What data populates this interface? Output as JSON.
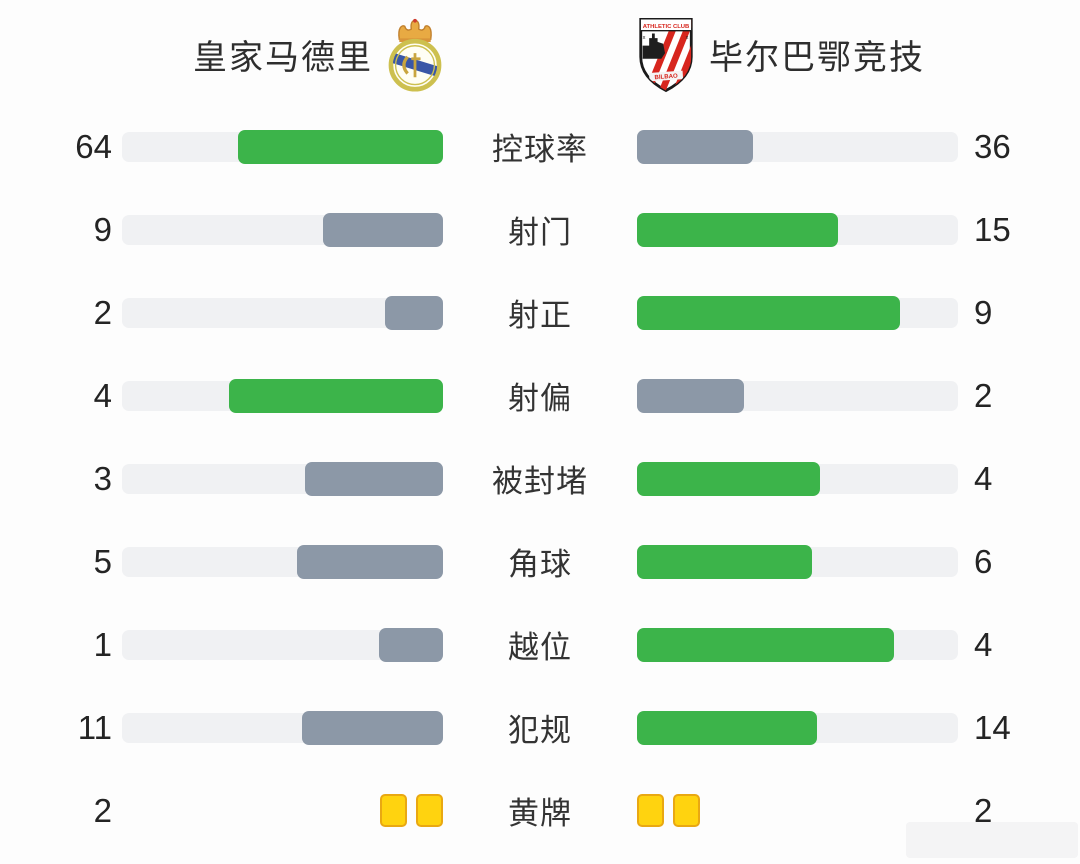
{
  "colors": {
    "win": "#3cb44a",
    "lose": "#8c98a7",
    "track": "#f0f1f3",
    "card": "#ffd30f",
    "cardborder": "#e9a812"
  },
  "header": {
    "home_team": "皇家马德里",
    "away_team": "毕尔巴鄂竞技",
    "home_crest": "real-madrid-crest",
    "away_crest": "athletic-club-crest",
    "away_crest_top_text": "ATHLETIC CLUB",
    "away_crest_bottom_text": "BILBAO"
  },
  "rows": [
    {
      "label": "控球率",
      "home": "64",
      "away": "36",
      "home_pct": 64,
      "away_pct": 36,
      "home_style": "win",
      "away_style": "lose"
    },
    {
      "label": "射门",
      "home": "9",
      "away": "15",
      "home_pct": 37.5,
      "away_pct": 62.5,
      "home_style": "lose",
      "away_style": "win"
    },
    {
      "label": "射正",
      "home": "2",
      "away": "9",
      "home_pct": 18.2,
      "away_pct": 81.8,
      "home_style": "lose",
      "away_style": "win"
    },
    {
      "label": "射偏",
      "home": "4",
      "away": "2",
      "home_pct": 66.7,
      "away_pct": 33.3,
      "home_style": "win",
      "away_style": "lose"
    },
    {
      "label": "被封堵",
      "home": "3",
      "away": "4",
      "home_pct": 42.9,
      "away_pct": 57.1,
      "home_style": "lose",
      "away_style": "win"
    },
    {
      "label": "角球",
      "home": "5",
      "away": "6",
      "home_pct": 45.5,
      "away_pct": 54.5,
      "home_style": "lose",
      "away_style": "win"
    },
    {
      "label": "越位",
      "home": "1",
      "away": "4",
      "home_pct": 20,
      "away_pct": 80,
      "home_style": "lose",
      "away_style": "win"
    },
    {
      "label": "犯规",
      "home": "11",
      "away": "14",
      "home_pct": 44,
      "away_pct": 56,
      "home_style": "lose",
      "away_style": "win"
    },
    {
      "label": "黄牌",
      "home": "2",
      "away": "2",
      "home_cards": 2,
      "away_cards": 2
    }
  ],
  "chart_data": {
    "type": "bar",
    "title": "皇家马德里 vs 毕尔巴鄂竞技 比赛技术统计",
    "categories": [
      "控球率",
      "射门",
      "射正",
      "射偏",
      "被封堵",
      "角球",
      "越位",
      "犯规",
      "黄牌"
    ],
    "series": [
      {
        "name": "皇家马德里",
        "values": [
          64,
          9,
          2,
          4,
          3,
          5,
          1,
          11,
          2
        ]
      },
      {
        "name": "毕尔巴鄂竞技",
        "values": [
          36,
          15,
          9,
          2,
          4,
          6,
          4,
          14,
          2
        ]
      }
    ],
    "layout": "mirrored-horizontal-bars, labels centered, higher value highlighted green, lower value gray"
  }
}
